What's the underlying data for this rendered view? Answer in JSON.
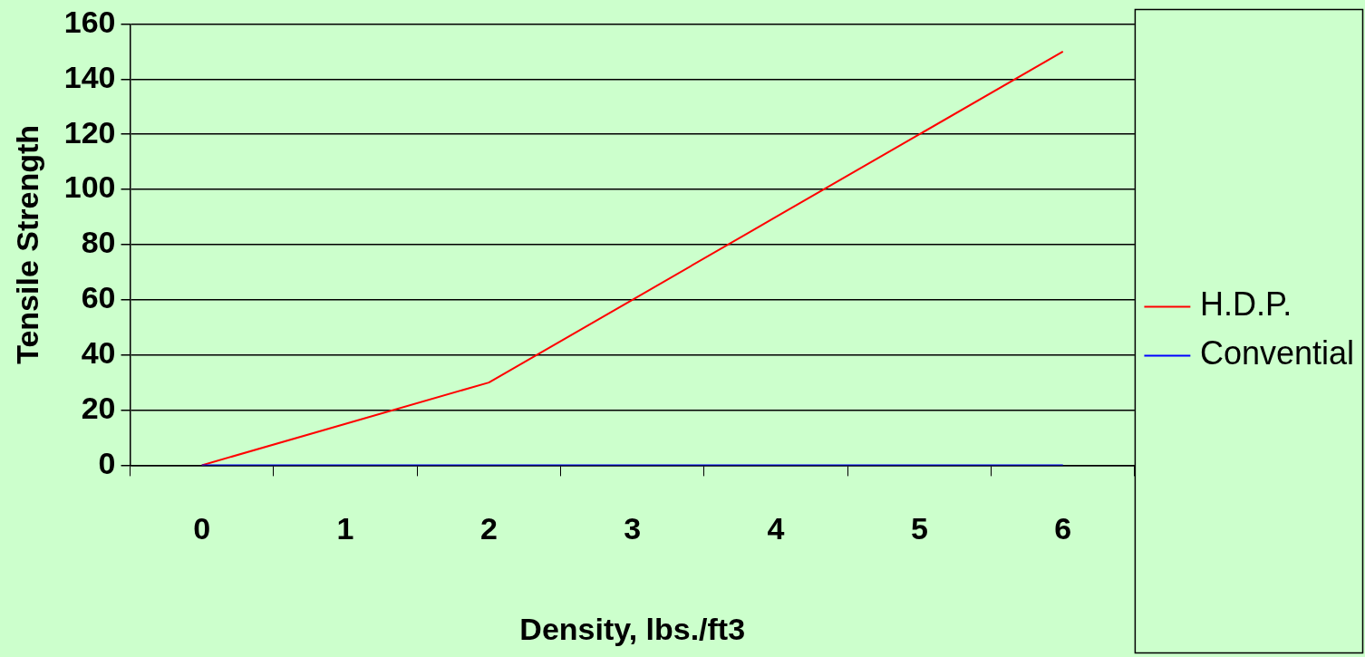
{
  "chart_data": {
    "type": "line",
    "xlabel": "Density, lbs./ft3",
    "ylabel": "Tensile Strength",
    "categories": [
      "0",
      "1",
      "2",
      "3",
      "4",
      "5",
      "6"
    ],
    "series": [
      {
        "name": "H.D.P.",
        "color": "#ff0000",
        "values": [
          0,
          15,
          30,
          60,
          90,
          120,
          150
        ]
      },
      {
        "name": "Convential",
        "color": "#0000ff",
        "values": [
          0,
          0,
          0,
          0,
          0,
          0,
          0
        ]
      }
    ],
    "ylim": [
      0,
      160
    ],
    "yticks": [
      0,
      20,
      40,
      60,
      80,
      100,
      120,
      140,
      160
    ],
    "grid": "y",
    "legend": "right",
    "marker": "none",
    "line_style": "solid"
  }
}
